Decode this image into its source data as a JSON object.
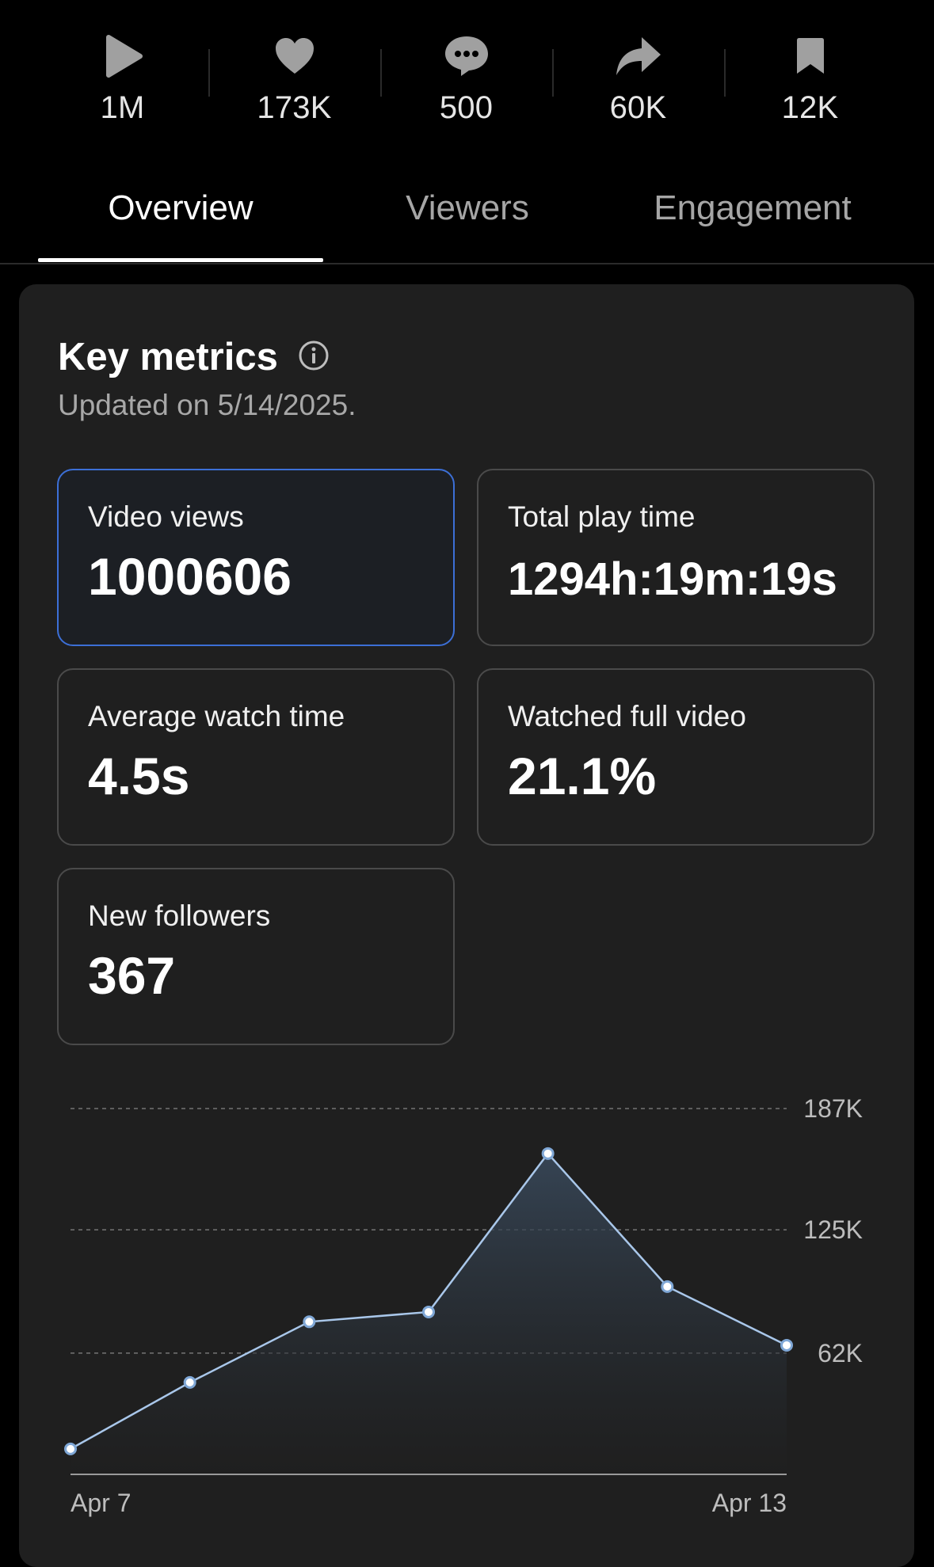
{
  "stats": [
    {
      "icon": "play-icon",
      "value": "1M"
    },
    {
      "icon": "heart-icon",
      "value": "173K"
    },
    {
      "icon": "comment-icon",
      "value": "500"
    },
    {
      "icon": "share-icon",
      "value": "60K"
    },
    {
      "icon": "bookmark-icon",
      "value": "12K"
    }
  ],
  "tabs": [
    {
      "label": "Overview",
      "active": true
    },
    {
      "label": "Viewers",
      "active": false
    },
    {
      "label": "Engagement",
      "active": false
    }
  ],
  "key_metrics": {
    "title": "Key metrics",
    "updated": "Updated on 5/14/2025.",
    "metrics": [
      {
        "label": "Video views",
        "value": "1000606",
        "selected": true
      },
      {
        "label": "Total play time",
        "value": "1294h:19m:19s",
        "selected": false
      },
      {
        "label": "Average watch time",
        "value": "4.5s",
        "selected": false
      },
      {
        "label": "Watched full video",
        "value": "21.1%",
        "selected": false
      },
      {
        "label": "New followers",
        "value": "367",
        "selected": false
      }
    ]
  },
  "colors": {
    "accent": "#3c6fd6",
    "line": "#a9c7ea",
    "card": "#1f1f1f",
    "background": "#000000"
  },
  "chart_data": {
    "type": "area",
    "x": [
      "Apr 7",
      "Apr 8",
      "Apr 9",
      "Apr 10",
      "Apr 11",
      "Apr 12",
      "Apr 13"
    ],
    "x_tick_labels": [
      "Apr 7",
      "Apr 13"
    ],
    "values": [
      13000,
      47000,
      78000,
      83000,
      164000,
      96000,
      66000
    ],
    "yticks": [
      62000,
      125000,
      187000
    ],
    "ytick_labels": [
      "62K",
      "125K",
      "187K"
    ],
    "ylim": [
      0,
      187000
    ],
    "grid": true
  }
}
